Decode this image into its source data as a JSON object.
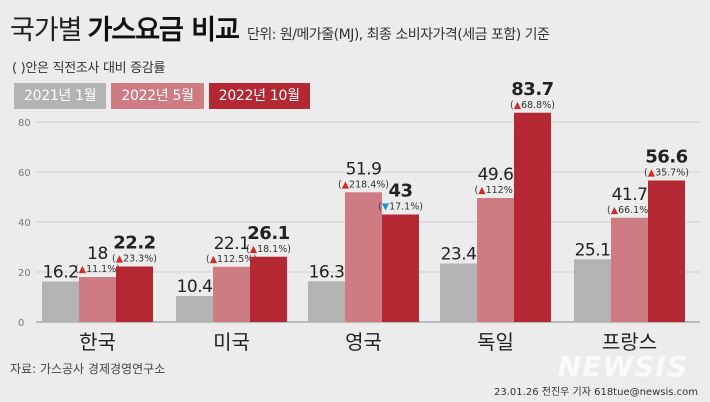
{
  "title_light": "국가별",
  "title_bold": "가스요금 비교",
  "unit_note": "단위: 원/메가줄(MJ), 최종 소비자가격(세금 포함) 기준",
  "subtitle": "( )안은 직전조사 대비 증감률",
  "colors": {
    "s1": "#b3b3b3",
    "s2": "#cf7b84",
    "s3": "#b42834",
    "up": "#d12a2a",
    "down": "#2a8fd1"
  },
  "chart_data": {
    "type": "bar",
    "categories": [
      "한국",
      "미국",
      "영국",
      "독일",
      "프랑스"
    ],
    "series": [
      {
        "name": "2021년 1월",
        "values": [
          16.2,
          10.4,
          16.3,
          23.4,
          25.1
        ]
      },
      {
        "name": "2022년 5월",
        "values": [
          18,
          22.1,
          51.9,
          49.6,
          41.7
        ],
        "changes": [
          {
            "dir": "up",
            "text": "11.1%"
          },
          {
            "dir": "up",
            "text": "112.5%"
          },
          {
            "dir": "up",
            "text": "218.4%"
          },
          {
            "dir": "up",
            "text": "112%"
          },
          {
            "dir": "up",
            "text": "66.1%"
          }
        ]
      },
      {
        "name": "2022년 10월",
        "values": [
          22.2,
          26.1,
          43,
          83.7,
          56.6
        ],
        "changes": [
          {
            "dir": "up",
            "text": "23.3%"
          },
          {
            "dir": "up",
            "text": "18.1%"
          },
          {
            "dir": "down",
            "text": "17.1%"
          },
          {
            "dir": "up",
            "text": "68.8%"
          },
          {
            "dir": "up",
            "text": "35.7%"
          }
        ]
      }
    ],
    "y_ticks": [
      "0",
      "20",
      "40",
      "60",
      "80"
    ],
    "ylim": [
      0,
      85
    ],
    "grid": true
  },
  "source": "자료: 가스공사 경제경영연구소",
  "credit": "23.01.26 전진우 기자 618tue@newsis.com",
  "logo": "NEWSIS"
}
